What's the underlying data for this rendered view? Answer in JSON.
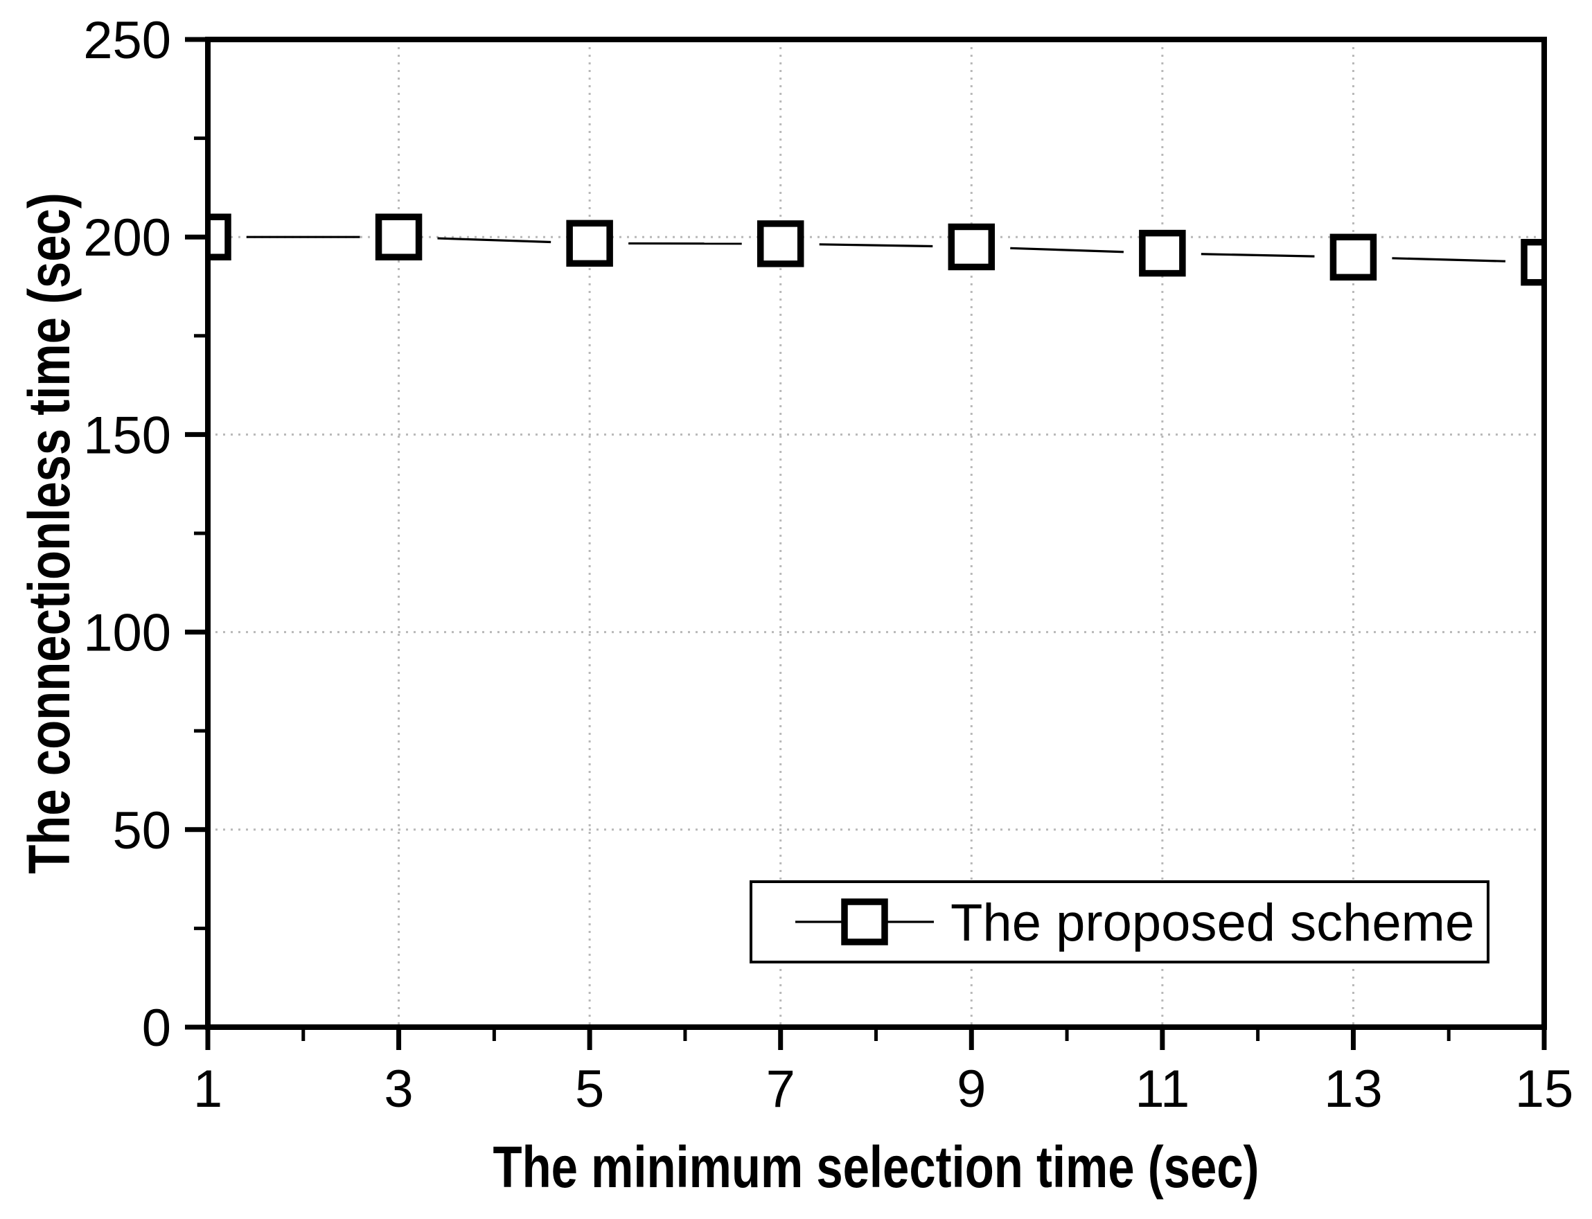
{
  "chart_data": {
    "type": "line",
    "title": "",
    "xlabel": "The minimum selection time (sec)",
    "ylabel": "The connectionless time (sec)",
    "x": [
      1,
      3,
      5,
      7,
      9,
      11,
      13,
      15
    ],
    "series": [
      {
        "name": "The proposed scheme",
        "values": [
          200,
          200,
          198.4,
          198.3,
          197.5,
          195.9,
          194.9,
          193.6
        ]
      }
    ],
    "xlim": [
      1,
      15
    ],
    "ylim": [
      0,
      250
    ],
    "x_major_ticks": [
      1,
      3,
      5,
      7,
      9,
      11,
      13,
      15
    ],
    "x_minor_ticks": [
      2,
      4,
      6,
      8,
      10,
      12,
      14
    ],
    "y_major_ticks": [
      0,
      50,
      100,
      150,
      200,
      250
    ],
    "y_minor_ticks": [
      25,
      75,
      125,
      175,
      225
    ],
    "grid": true,
    "grid_style": "dotted",
    "legend_position": "lower-right",
    "marker": "open-square",
    "colors": {
      "line": "#000000",
      "marker_fill": "#ffffff",
      "grid": "#b8b8b8",
      "axis": "#000000",
      "background": "#ffffff"
    }
  }
}
